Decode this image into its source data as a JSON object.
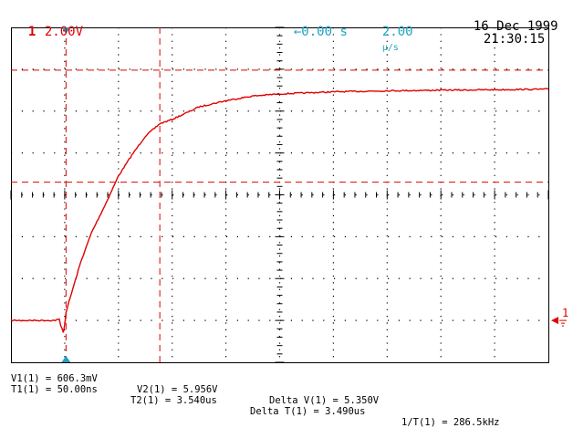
{
  "header": {
    "channel_number": "1",
    "channel_scale": "2.00V",
    "trigger_arrow_icon": "left-arrow-icon",
    "time_offset": "0.00 s",
    "time_scale_value": "2.00",
    "time_scale_unit": "µ/s",
    "date": "16 Dec 1999",
    "time": "21:30:15"
  },
  "markers": {
    "ground_label": "1"
  },
  "measurements": {
    "v1": "V1(1) = 606.3mV",
    "v2": "V2(1) = 5.956V",
    "delta_v": "Delta V(1) = 5.350V",
    "t1": "T1(1) = 50.00ns",
    "t2": "T2(1) = 3.540us",
    "delta_t": "Delta T(1) = 3.490us",
    "inv_t": "1/T(1) = 286.5kHz"
  },
  "colors": {
    "trace": "#e00000",
    "cursor": "#e00000",
    "trigger_marker": "#1fa3c0",
    "grid": "#000000"
  },
  "chart_data": {
    "type": "line",
    "xlabel": "",
    "ylabel": "",
    "xlim_us": [
      -2.0,
      18.0
    ],
    "ylim_V": [
      -8.0,
      8.0
    ],
    "x_divisions": 10,
    "y_divisions": 8,
    "grid": true,
    "series": [
      {
        "x": [
          -2.0,
          -0.4,
          -0.2,
          -0.15,
          -0.05,
          0.0,
          0.05,
          0.3,
          0.6,
          1.0,
          1.5,
          2.0,
          2.5,
          3.0,
          3.54,
          4.0,
          5.0,
          6.0,
          7.0,
          8.0,
          10.0,
          12.0,
          14.0,
          16.0,
          18.0
        ],
        "y": [
          -6.0,
          -6.0,
          -5.95,
          -6.25,
          -6.55,
          -6.2,
          -5.6,
          -4.5,
          -3.2,
          -1.8,
          -0.5,
          0.9,
          1.9,
          2.8,
          3.4,
          3.6,
          4.2,
          4.5,
          4.72,
          4.82,
          4.92,
          4.97,
          5.0,
          5.02,
          5.05
        ]
      }
    ],
    "cursors": {
      "t1_us": 0.05,
      "t2_us": 3.54,
      "v1_V": 0.606,
      "v2_V": 5.956
    },
    "ground_level_V": -6.0
  }
}
